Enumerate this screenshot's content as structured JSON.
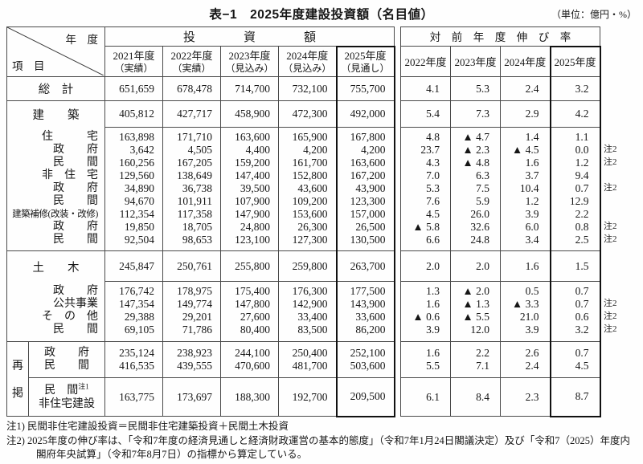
{
  "page": {
    "title": "表−1　2025年度建設投資額（名目値）",
    "unit": "（単位：億円・%）"
  },
  "tables": {
    "corner": {
      "top": "年　度",
      "bottom": "項　目"
    },
    "invest_header": "投　　　　資　　　　額",
    "growth_header": "対　前　年　度　伸　び　率",
    "invest_cols": [
      {
        "year": "2021年度",
        "kind": "（実績）"
      },
      {
        "year": "2022年度",
        "kind": "（実績）"
      },
      {
        "year": "2023年度",
        "kind": "（見込み）"
      },
      {
        "year": "2024年度",
        "kind": "（見込み）"
      },
      {
        "year": "2025年度",
        "kind": "（見通し）"
      }
    ],
    "growth_cols": [
      "2022年度",
      "2023年度",
      "2024年度",
      "2025年度"
    ],
    "note2_label": "注2",
    "saikei_label": [
      "再",
      "掲"
    ],
    "rows": {
      "sokei": {
        "label": "総　計",
        "invest": [
          "651,659",
          "678,478",
          "714,700",
          "732,100",
          "755,700"
        ],
        "growth": [
          "4.1",
          "5.3",
          "2.4",
          "3.2"
        ]
      },
      "kenchiku": {
        "label": "建　　築",
        "invest": [
          "405,812",
          "427,717",
          "458,900",
          "472,300",
          "492,000"
        ],
        "growth": [
          "5.4",
          "7.3",
          "2.9",
          "4.2"
        ]
      },
      "kenchiku_sub": [
        {
          "label": "住　　　宅",
          "invest": [
            "163,898",
            "171,710",
            "163,600",
            "165,900",
            "167,800"
          ],
          "growth": [
            "4.8",
            "▲ 4.7",
            "1.4",
            "1.1"
          ],
          "note2": false
        },
        {
          "label": "政　　府",
          "invest": [
            "3,642",
            "4,505",
            "4,400",
            "4,200",
            "4,200"
          ],
          "growth": [
            "23.7",
            "▲ 2.3",
            "▲ 4.5",
            "0.0"
          ],
          "note2": true
        },
        {
          "label": "民　　間",
          "invest": [
            "160,256",
            "167,205",
            "159,200",
            "161,700",
            "163,600"
          ],
          "growth": [
            "4.3",
            "▲ 4.8",
            "1.6",
            "1.2"
          ],
          "note2": true
        },
        {
          "label": "非　住　宅",
          "invest": [
            "129,560",
            "138,649",
            "147,400",
            "152,800",
            "167,200"
          ],
          "growth": [
            "7.0",
            "6.3",
            "3.7",
            "9.4"
          ],
          "note2": false
        },
        {
          "label": "政　　府",
          "invest": [
            "34,890",
            "36,738",
            "39,500",
            "43,600",
            "43,900"
          ],
          "growth": [
            "5.3",
            "7.5",
            "10.4",
            "0.7"
          ],
          "note2": true
        },
        {
          "label": "民　　間",
          "invest": [
            "94,670",
            "101,911",
            "107,900",
            "109,200",
            "123,300"
          ],
          "growth": [
            "7.6",
            "5.9",
            "1.2",
            "12.9"
          ],
          "note2": false
        },
        {
          "label": "建築補修(改装・改修)",
          "small": true,
          "invest": [
            "112,354",
            "117,358",
            "147,900",
            "153,600",
            "157,000"
          ],
          "growth": [
            "4.5",
            "26.0",
            "3.9",
            "2.2"
          ],
          "note2": false
        },
        {
          "label": "政　　府",
          "invest": [
            "19,850",
            "18,705",
            "24,800",
            "26,300",
            "26,500"
          ],
          "growth": [
            "▲ 5.8",
            "32.6",
            "6.0",
            "0.8"
          ],
          "note2": true
        },
        {
          "label": "民　　間",
          "invest": [
            "92,504",
            "98,653",
            "123,100",
            "127,300",
            "130,500"
          ],
          "growth": [
            "6.6",
            "24.8",
            "3.4",
            "2.5"
          ],
          "note2": true
        }
      ],
      "doboku": {
        "label": "土　　木",
        "invest": [
          "245,847",
          "250,761",
          "255,800",
          "259,800",
          "263,700"
        ],
        "growth": [
          "2.0",
          "2.0",
          "1.6",
          "1.5"
        ]
      },
      "doboku_sub": [
        {
          "label": "政　　府",
          "invest": [
            "176,742",
            "178,975",
            "175,400",
            "176,300",
            "177,500"
          ],
          "growth": [
            "1.3",
            "▲ 2.0",
            "0.5",
            "0.7"
          ],
          "note2": false
        },
        {
          "label": "公共事業",
          "invest": [
            "147,354",
            "149,774",
            "147,800",
            "142,900",
            "143,900"
          ],
          "growth": [
            "1.6",
            "▲ 1.3",
            "▲ 3.3",
            "0.7"
          ],
          "note2": true
        },
        {
          "label": "そ　の　他",
          "invest": [
            "29,388",
            "29,201",
            "27,600",
            "33,400",
            "33,600"
          ],
          "growth": [
            "▲ 0.6",
            "▲ 5.5",
            "21.0",
            "0.6"
          ],
          "note2": true
        },
        {
          "label": "民　　間",
          "invest": [
            "69,105",
            "71,786",
            "80,400",
            "83,500",
            "86,200"
          ],
          "growth": [
            "3.9",
            "12.0",
            "3.9",
            "3.2"
          ],
          "note2": true
        }
      ],
      "saikei_sub": [
        {
          "label": "政　　府",
          "invest": [
            "235,124",
            "238,923",
            "244,100",
            "250,400",
            "252,100"
          ],
          "growth": [
            "1.6",
            "2.2",
            "2.6",
            "0.7"
          ]
        },
        {
          "label": "民　　間",
          "invest": [
            "416,535",
            "439,555",
            "470,600",
            "481,700",
            "503,600"
          ],
          "growth": [
            "5.5",
            "7.1",
            "2.4",
            "4.5"
          ]
        }
      ],
      "saikei_minkan": {
        "label1": "民　間",
        "sup": "注1",
        "label2": "非住宅建設",
        "invest": [
          "163,775",
          "173,697",
          "188,300",
          "192,700",
          "209,500"
        ],
        "growth": [
          "6.1",
          "8.4",
          "2.3",
          "8.7"
        ]
      }
    },
    "footnotes": [
      "注1) 民間非住宅建設投資＝民間非住宅建築投資＋民間土木投資",
      "注2) 2025年度の伸び率は、「令和7年度の経済見通しと経済財政運営の基本的態度」（令和7年1月24日閣議決定）及び「令和7（2025）年度内閣府年央試算」（令和7年8月7日）の指標から算定している。"
    ]
  }
}
